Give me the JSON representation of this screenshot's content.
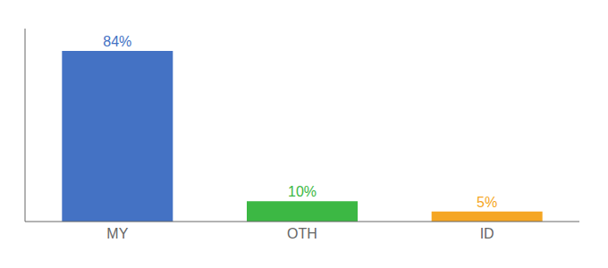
{
  "chart_data": {
    "type": "bar",
    "categories": [
      "MY",
      "OTH",
      "ID"
    ],
    "values": [
      84,
      10,
      5
    ],
    "value_labels": [
      "84%",
      "10%",
      "5%"
    ],
    "colors": [
      "#4472c4",
      "#3cb844",
      "#f5a623"
    ],
    "ylim": [
      0,
      95
    ],
    "yticks": [],
    "tick_labels": "x",
    "data_labels": true,
    "grid": false
  }
}
